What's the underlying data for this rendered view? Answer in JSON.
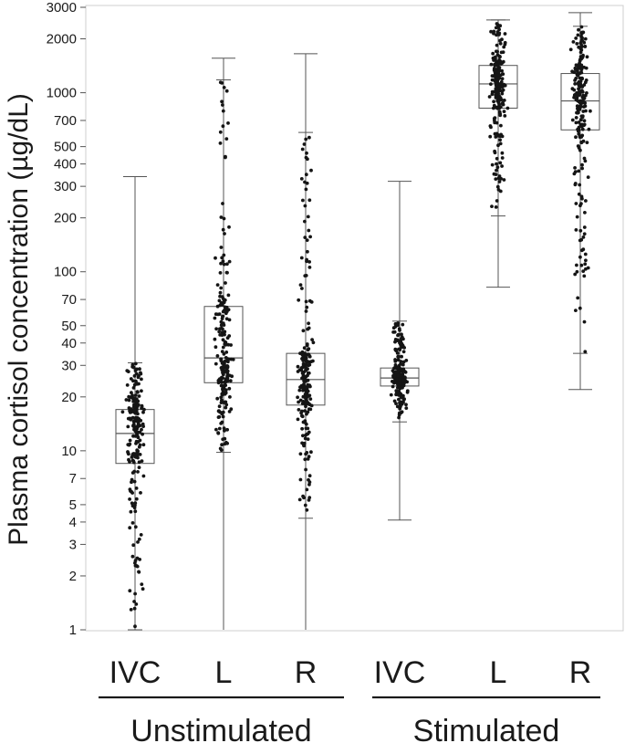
{
  "chart_data": {
    "type": "box",
    "ylabel": "Plasma cortisol concentration (µg/dL)",
    "y_scale": "log",
    "ylim": [
      1,
      3000
    ],
    "y_ticks": [
      1,
      2,
      3,
      4,
      5,
      7,
      10,
      20,
      30,
      40,
      50,
      70,
      100,
      200,
      300,
      400,
      500,
      700,
      1000,
      2000,
      3000
    ],
    "y_tick_labels": [
      "1",
      "2",
      "3",
      "4",
      "5",
      "7",
      "10",
      "20",
      "30",
      "40",
      "50",
      "70",
      "100",
      "200",
      "300",
      "400",
      "500",
      "700",
      "1000",
      "2000",
      "3000"
    ],
    "grid": false,
    "categories": [
      "IVC",
      "L",
      "R",
      "IVC",
      "L",
      "R"
    ],
    "groups": [
      {
        "label": "Unstimulated",
        "members": [
          0,
          1,
          2
        ]
      },
      {
        "label": "Stimulated",
        "members": [
          3,
          4,
          5
        ]
      }
    ],
    "boxes": [
      {
        "category": "IVC",
        "group": "Unstimulated",
        "min": 1,
        "whisker_low": 1,
        "q1": 8.5,
        "median": 12.5,
        "q3": 17,
        "whisker_high": 31,
        "max": 340
      },
      {
        "category": "L",
        "group": "Unstimulated",
        "min": 1,
        "whisker_low": 9.8,
        "q1": 24,
        "median": 33,
        "q3": 64,
        "whisker_high": 1180,
        "max": 1560
      },
      {
        "category": "R",
        "group": "Unstimulated",
        "min": 1,
        "whisker_low": 4.2,
        "q1": 18,
        "median": 25,
        "q3": 35,
        "whisker_high": 600,
        "max": 1650
      },
      {
        "category": "IVC",
        "group": "Stimulated",
        "min": 4.1,
        "whisker_low": 14.5,
        "q1": 23,
        "median": 25.5,
        "q3": 29,
        "whisker_high": 53,
        "max": 320
      },
      {
        "category": "L",
        "group": "Stimulated",
        "min": 82,
        "whisker_low": 205,
        "q1": 820,
        "median": 1120,
        "q3": 1420,
        "whisker_high": 2550,
        "max": 2550
      },
      {
        "category": "R",
        "group": "Stimulated",
        "min": 22,
        "whisker_low": 35,
        "q1": 620,
        "median": 900,
        "q3": 1280,
        "whisker_high": 2350,
        "max": 2800
      }
    ]
  }
}
